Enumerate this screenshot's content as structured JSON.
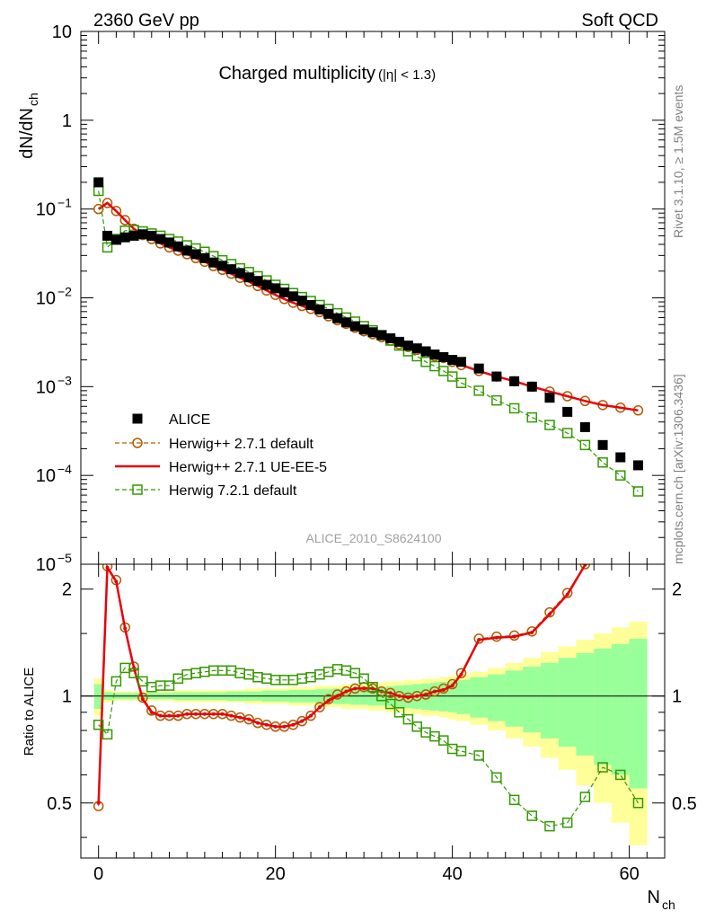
{
  "header": {
    "left": "2360 GeV pp",
    "right": "Soft QCD",
    "side_top": "Rivet 3.1.10, ≥ 1.5M events",
    "side_bottom": "mcplots.cern.ch [arXiv:1306.3436]",
    "analysis_id": "ALICE_2010_S8624100"
  },
  "chart_data": [
    {
      "type": "scatter",
      "panel": "main",
      "title": "Charged multiplicity",
      "title_suffix": "(|η| < 1.3)",
      "ylabel": "dN/dN",
      "ylabel_sub": "ch",
      "yscale": "log",
      "ylim": [
        1e-05,
        10
      ],
      "xlim": [
        -2,
        64
      ],
      "yticks": [
        {
          "v": 10,
          "label": "10"
        },
        {
          "v": 1,
          "label": "1"
        },
        {
          "v": 0.1,
          "label": "10",
          "exp": "−1"
        },
        {
          "v": 0.01,
          "label": "10",
          "exp": "−2"
        },
        {
          "v": 0.001,
          "label": "10",
          "exp": "−3"
        },
        {
          "v": 0.0001,
          "label": "10",
          "exp": "−4"
        },
        {
          "v": 1e-05,
          "label": "10",
          "exp": "−5"
        }
      ],
      "series": [
        {
          "name": "ALICE",
          "color": "#000000",
          "marker": "filled-square",
          "x": [
            0,
            1,
            2,
            3,
            4,
            5,
            6,
            7,
            8,
            9,
            10,
            11,
            12,
            13,
            14,
            15,
            16,
            17,
            18,
            19,
            20,
            21,
            22,
            23,
            24,
            25,
            26,
            27,
            28,
            29,
            30,
            31,
            32,
            33,
            34,
            35,
            36,
            37,
            38,
            39,
            40,
            41,
            43,
            45,
            47,
            49,
            51,
            53,
            55,
            57,
            59,
            61
          ],
          "y": [
            0.2,
            0.05,
            0.045,
            0.048,
            0.05,
            0.052,
            0.05,
            0.046,
            0.042,
            0.038,
            0.034,
            0.031,
            0.028,
            0.025,
            0.023,
            0.021,
            0.019,
            0.017,
            0.0155,
            0.014,
            0.0128,
            0.0115,
            0.0104,
            0.0093,
            0.0083,
            0.0074,
            0.0066,
            0.0059,
            0.0053,
            0.0048,
            0.0044,
            0.0041,
            0.0038,
            0.0035,
            0.0032,
            0.0029,
            0.0027,
            0.0025,
            0.0023,
            0.00215,
            0.002,
            0.0019,
            0.0016,
            0.0013,
            0.00115,
            0.001,
            0.00075,
            0.00052,
            0.00035,
            0.00022,
            0.00016,
            0.00013
          ]
        },
        {
          "name": "Herwig++ 2.7.1 default",
          "color": "#b35900",
          "marker": "open-circle",
          "line": "dashed",
          "x": [
            0,
            1,
            2,
            3,
            4,
            5,
            6,
            7,
            8,
            9,
            10,
            11,
            12,
            13,
            14,
            15,
            16,
            17,
            18,
            19,
            20,
            21,
            22,
            23,
            24,
            25,
            26,
            27,
            28,
            29,
            30,
            31,
            32,
            33,
            34,
            35,
            36,
            37,
            38,
            39,
            40,
            41,
            43,
            45,
            47,
            49,
            51,
            53,
            55,
            57,
            59,
            61
          ],
          "y": [
            0.1,
            0.117,
            0.095,
            0.075,
            0.06,
            0.051,
            0.046,
            0.041,
            0.037,
            0.034,
            0.031,
            0.028,
            0.0255,
            0.0228,
            0.0207,
            0.0187,
            0.0168,
            0.0152,
            0.0136,
            0.0121,
            0.0108,
            0.0097,
            0.0088,
            0.0081,
            0.0075,
            0.0069,
            0.0062,
            0.0056,
            0.0051,
            0.0046,
            0.0042,
            0.0039,
            0.0036,
            0.0033,
            0.003,
            0.0028,
            0.0026,
            0.0024,
            0.0022,
            0.0021,
            0.0019,
            0.00175,
            0.0015,
            0.0013,
            0.00115,
            0.001,
            0.00088,
            0.00078,
            0.00069,
            0.00062,
            0.00058,
            0.00054
          ]
        },
        {
          "name": "Herwig++ 2.7.1 UE-EE-5",
          "color": "#e8000b",
          "marker": "none",
          "line": "solid",
          "x": [
            0,
            1,
            2,
            3,
            4,
            5,
            6,
            7,
            8,
            9,
            10,
            11,
            12,
            13,
            14,
            15,
            16,
            17,
            18,
            19,
            20,
            21,
            22,
            23,
            24,
            25,
            26,
            27,
            28,
            29,
            30,
            31,
            32,
            33,
            34,
            35,
            36,
            37,
            38,
            39,
            40,
            41,
            43,
            45,
            47,
            49,
            51,
            53,
            55,
            57,
            59,
            61
          ],
          "y": [
            0.1,
            0.117,
            0.095,
            0.075,
            0.06,
            0.051,
            0.046,
            0.041,
            0.037,
            0.034,
            0.031,
            0.028,
            0.0255,
            0.0228,
            0.0207,
            0.0187,
            0.0168,
            0.0152,
            0.0136,
            0.0121,
            0.0108,
            0.0097,
            0.0088,
            0.0081,
            0.0075,
            0.0069,
            0.0062,
            0.0056,
            0.0051,
            0.0046,
            0.0042,
            0.0039,
            0.0036,
            0.0033,
            0.003,
            0.0028,
            0.0026,
            0.0024,
            0.0022,
            0.0021,
            0.0019,
            0.00175,
            0.0015,
            0.0013,
            0.00115,
            0.001,
            0.00088,
            0.00078,
            0.00069,
            0.00062,
            0.00058,
            0.00054
          ]
        },
        {
          "name": "Herwig 7.2.1 default",
          "color": "#339900",
          "marker": "open-square",
          "line": "dashed",
          "x": [
            0,
            1,
            2,
            3,
            4,
            5,
            6,
            7,
            8,
            9,
            10,
            11,
            12,
            13,
            14,
            15,
            16,
            17,
            18,
            19,
            20,
            21,
            22,
            23,
            24,
            25,
            26,
            27,
            28,
            29,
            30,
            31,
            32,
            33,
            34,
            35,
            36,
            37,
            38,
            39,
            40,
            41,
            43,
            45,
            47,
            49,
            51,
            53,
            55,
            57,
            59,
            61
          ],
          "y": [
            0.16,
            0.037,
            0.046,
            0.057,
            0.058,
            0.056,
            0.053,
            0.05,
            0.046,
            0.043,
            0.039,
            0.036,
            0.033,
            0.0295,
            0.0265,
            0.024,
            0.0215,
            0.0195,
            0.0175,
            0.0157,
            0.014,
            0.0126,
            0.0113,
            0.0102,
            0.0092,
            0.0083,
            0.0075,
            0.0067,
            0.006,
            0.0054,
            0.0048,
            0.0043,
            0.0038,
            0.0033,
            0.0029,
            0.0025,
            0.0022,
            0.0019,
            0.0017,
            0.0015,
            0.0013,
            0.0011,
            0.0009,
            0.0007,
            0.00057,
            0.00045,
            0.00037,
            0.0003,
            0.00022,
            0.00014,
            0.0001,
            6.6e-05
          ]
        }
      ]
    },
    {
      "type": "line",
      "panel": "ratio",
      "xlabel": "N",
      "xlabel_sub": "ch",
      "ylabel": "Ratio to ALICE",
      "ylim": [
        0.35,
        2.35
      ],
      "xlim": [
        -2,
        64
      ],
      "xticks": [
        0,
        20,
        40,
        60
      ],
      "yticks": [
        0.5,
        1,
        2
      ],
      "band_x": [
        -0.5,
        0.5,
        1.5,
        2.5,
        3.5,
        4.5,
        5.5,
        6.5,
        7.5,
        8.5,
        9.5,
        10.5,
        11.5,
        12.5,
        13.5,
        14.5,
        15.5,
        16.5,
        17.5,
        18.5,
        19.5,
        20.5,
        21.5,
        22.5,
        23.5,
        24.5,
        25.5,
        26.5,
        27.5,
        28.5,
        29.5,
        30.5,
        31.5,
        32.5,
        33.5,
        34.5,
        35.5,
        36.5,
        37.5,
        38.5,
        39.5,
        40.5,
        42,
        44,
        46,
        48,
        50,
        52,
        54,
        56,
        58,
        60,
        62
      ],
      "band_yellow": [
        0.12,
        0.04,
        0.03,
        0.03,
        0.03,
        0.03,
        0.03,
        0.03,
        0.03,
        0.04,
        0.04,
        0.04,
        0.04,
        0.04,
        0.04,
        0.04,
        0.04,
        0.05,
        0.05,
        0.05,
        0.05,
        0.05,
        0.06,
        0.06,
        0.06,
        0.07,
        0.07,
        0.07,
        0.08,
        0.08,
        0.08,
        0.09,
        0.09,
        0.1,
        0.1,
        0.11,
        0.11,
        0.12,
        0.12,
        0.13,
        0.14,
        0.15,
        0.17,
        0.2,
        0.24,
        0.28,
        0.33,
        0.38,
        0.44,
        0.5,
        0.56,
        0.62
      ],
      "band_green": [
        0.08,
        0.025,
        0.02,
        0.02,
        0.02,
        0.02,
        0.02,
        0.02,
        0.02,
        0.025,
        0.025,
        0.025,
        0.025,
        0.025,
        0.025,
        0.03,
        0.03,
        0.03,
        0.03,
        0.035,
        0.035,
        0.035,
        0.04,
        0.04,
        0.04,
        0.045,
        0.045,
        0.05,
        0.05,
        0.055,
        0.055,
        0.06,
        0.06,
        0.065,
        0.07,
        0.075,
        0.08,
        0.085,
        0.09,
        0.095,
        0.1,
        0.11,
        0.13,
        0.15,
        0.18,
        0.21,
        0.24,
        0.28,
        0.32,
        0.36,
        0.4,
        0.45
      ],
      "series": [
        {
          "name": "Herwig++ 2.7.1 default",
          "color": "#b35900",
          "marker": "open-circle",
          "line": "dashed",
          "x": [
            0,
            1,
            2,
            3,
            4,
            5,
            6,
            7,
            8,
            9,
            10,
            11,
            12,
            13,
            14,
            15,
            16,
            17,
            18,
            19,
            20,
            21,
            22,
            23,
            24,
            25,
            26,
            27,
            28,
            29,
            30,
            31,
            32,
            33,
            34,
            35,
            36,
            37,
            38,
            39,
            40,
            41,
            43,
            45,
            47,
            49,
            51,
            53,
            55
          ],
          "y": [
            0.49,
            2.32,
            2.12,
            1.56,
            1.21,
            0.99,
            0.91,
            0.88,
            0.88,
            0.88,
            0.89,
            0.89,
            0.89,
            0.89,
            0.89,
            0.88,
            0.87,
            0.86,
            0.84,
            0.83,
            0.82,
            0.82,
            0.83,
            0.85,
            0.88,
            0.93,
            0.98,
            1.01,
            1.03,
            1.05,
            1.06,
            1.05,
            1.03,
            1.02,
            1.0,
            0.99,
            1.0,
            1.01,
            1.03,
            1.05,
            1.08,
            1.16,
            1.45,
            1.47,
            1.48,
            1.52,
            1.72,
            1.95,
            2.35
          ]
        },
        {
          "name": "Herwig++ 2.7.1 UE-EE-5",
          "color": "#e8000b",
          "marker": "dot",
          "line": "solid",
          "x": [
            0,
            1,
            2,
            3,
            4,
            5,
            6,
            7,
            8,
            9,
            10,
            11,
            12,
            13,
            14,
            15,
            16,
            17,
            18,
            19,
            20,
            21,
            22,
            23,
            24,
            25,
            26,
            27,
            28,
            29,
            30,
            31,
            32,
            33,
            34,
            35,
            36,
            37,
            38,
            39,
            40,
            41,
            43,
            45,
            47,
            49,
            51,
            53,
            55
          ],
          "y": [
            0.5,
            2.3,
            2.1,
            1.55,
            1.2,
            0.98,
            0.9,
            0.88,
            0.88,
            0.88,
            0.89,
            0.89,
            0.89,
            0.89,
            0.89,
            0.88,
            0.87,
            0.86,
            0.84,
            0.83,
            0.82,
            0.82,
            0.83,
            0.85,
            0.88,
            0.93,
            0.97,
            1.0,
            1.03,
            1.05,
            1.05,
            1.05,
            1.03,
            1.02,
            1.0,
            0.99,
            1.0,
            1.01,
            1.03,
            1.04,
            1.07,
            1.15,
            1.44,
            1.46,
            1.47,
            1.51,
            1.7,
            1.93,
            2.34
          ]
        },
        {
          "name": "Herwig 7.2.1 default",
          "color": "#339900",
          "marker": "open-square",
          "line": "dashed",
          "x": [
            0,
            1,
            2,
            3,
            4,
            5,
            6,
            7,
            8,
            9,
            10,
            11,
            12,
            13,
            14,
            15,
            16,
            17,
            18,
            19,
            20,
            21,
            22,
            23,
            24,
            25,
            26,
            27,
            28,
            29,
            30,
            31,
            32,
            33,
            34,
            35,
            36,
            37,
            38,
            39,
            40,
            41,
            43,
            45,
            47,
            49,
            51,
            53,
            55,
            57,
            59,
            61
          ],
          "y": [
            0.83,
            0.78,
            1.1,
            1.2,
            1.16,
            1.1,
            1.06,
            1.07,
            1.07,
            1.12,
            1.15,
            1.16,
            1.17,
            1.18,
            1.18,
            1.18,
            1.16,
            1.15,
            1.13,
            1.12,
            1.11,
            1.11,
            1.11,
            1.12,
            1.13,
            1.15,
            1.17,
            1.19,
            1.18,
            1.16,
            1.12,
            1.06,
            1.0,
            0.95,
            0.9,
            0.86,
            0.82,
            0.79,
            0.77,
            0.75,
            0.71,
            0.7,
            0.68,
            0.59,
            0.51,
            0.46,
            0.43,
            0.44,
            0.52,
            0.63,
            0.6,
            0.5
          ]
        }
      ]
    }
  ]
}
